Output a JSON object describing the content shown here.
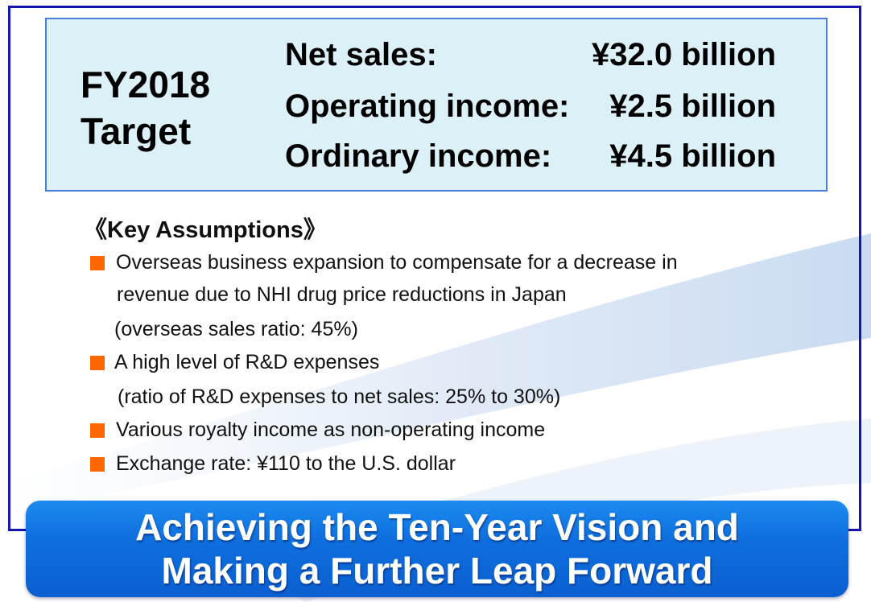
{
  "target": {
    "label_line1": "FY2018",
    "label_line2": "Target",
    "metrics": [
      {
        "label": "Net sales:",
        "value": "¥32.0 billion"
      },
      {
        "label": "Operating income:",
        "value": "¥2.5 billion"
      },
      {
        "label": "Ordinary income:",
        "value": "¥4.5 billion"
      }
    ]
  },
  "assumptions": {
    "title": "《Key Assumptions》",
    "items": [
      {
        "lines": [
          "Overseas business expansion to compensate for a decrease in",
          "revenue due to NHI drug price reductions in Japan",
          "(overseas sales ratio: 45%)"
        ]
      },
      {
        "lines": [
          "A high level of R&D expenses",
          "(ratio of R&D expenses to net sales: 25% to 30%)"
        ]
      },
      {
        "lines": [
          "Various royalty income as non-operating income"
        ]
      },
      {
        "lines": [
          "Exchange rate: ¥110 to the U.S. dollar"
        ]
      }
    ]
  },
  "banner": {
    "line1": "Achieving the Ten-Year Vision and",
    "line2": "Making a Further Leap Forward"
  },
  "colors": {
    "frame": "#1414b4",
    "target_bg": "#dcf0f7",
    "target_border": "#4a7fd9",
    "bullet": "#ff6600",
    "banner": "#0f6fde"
  }
}
